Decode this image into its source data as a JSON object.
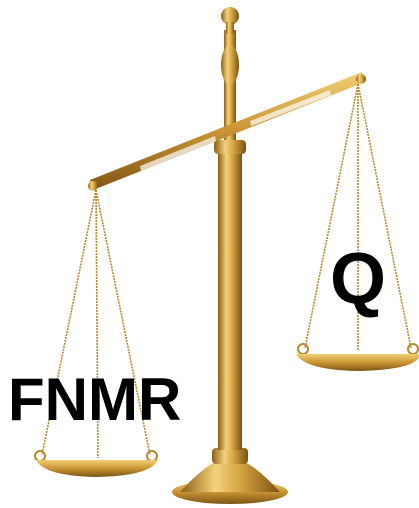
{
  "left_pan": {
    "label": "FNMR"
  },
  "right_pan": {
    "label": "Q"
  }
}
